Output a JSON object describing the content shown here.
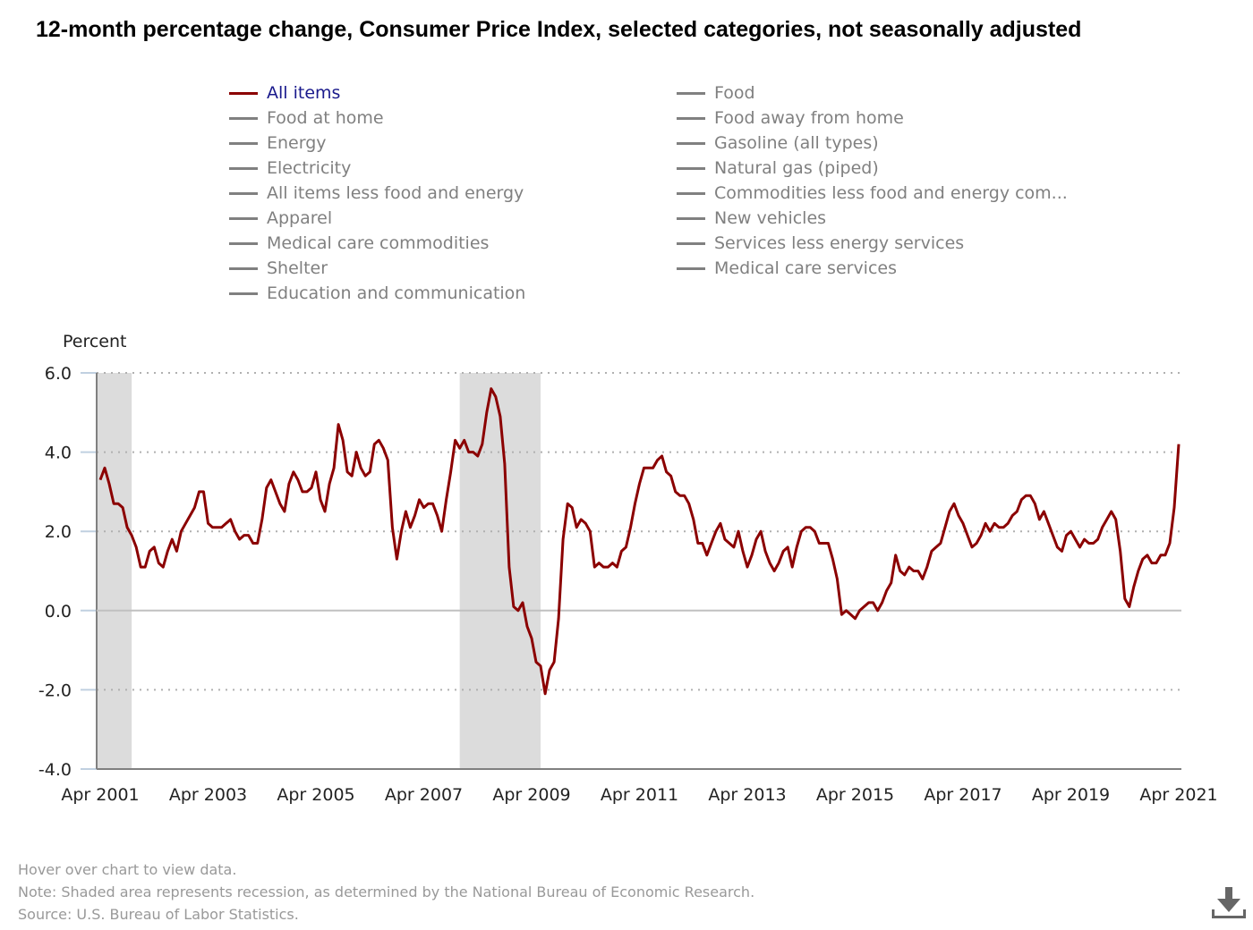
{
  "title": "12-month percentage change, Consumer Price Index, selected categories, not seasonally adjusted",
  "legend": {
    "left": [
      {
        "label": "All items",
        "active": true
      },
      {
        "label": "Food at home",
        "active": false
      },
      {
        "label": "Energy",
        "active": false
      },
      {
        "label": "Electricity",
        "active": false
      },
      {
        "label": "All items less food and energy",
        "active": false
      },
      {
        "label": "Apparel",
        "active": false
      },
      {
        "label": "Medical care commodities",
        "active": false
      },
      {
        "label": "Shelter",
        "active": false
      },
      {
        "label": "Education and communication",
        "active": false
      }
    ],
    "right": [
      {
        "label": "Food",
        "active": false
      },
      {
        "label": "Food away from home",
        "active": false
      },
      {
        "label": "Gasoline (all types)",
        "active": false
      },
      {
        "label": "Natural gas (piped)",
        "active": false
      },
      {
        "label": "Commodities less food and energy com...",
        "active": false
      },
      {
        "label": "New vehicles",
        "active": false
      },
      {
        "label": "Services less energy services",
        "active": false
      },
      {
        "label": "Medical care services",
        "active": false
      }
    ]
  },
  "colors": {
    "active_series": "#8b0000",
    "inactive_series": "#808080",
    "active_label": "#1a1a8c",
    "recession_fill": "#dcdcdc"
  },
  "chart_data": {
    "type": "line",
    "title": "12-month percentage change, Consumer Price Index, selected categories, not seasonally adjusted",
    "xlabel": "",
    "ylabel": "Percent",
    "ylim": [
      -4.0,
      6.0
    ],
    "yticks": [
      "6.0",
      "4.0",
      "2.0",
      "0.0",
      "-2.0",
      "-4.0"
    ],
    "ytick_values": [
      6,
      4,
      2,
      0,
      -2,
      -4
    ],
    "xticks": [
      "Apr 2001",
      "Apr 2003",
      "Apr 2005",
      "Apr 2007",
      "Apr 2009",
      "Apr 2011",
      "Apr 2013",
      "Apr 2015",
      "Apr 2017",
      "Apr 2019",
      "Apr 2021"
    ],
    "x_start": "Apr 2001",
    "x_end": "Apr 2021",
    "frequency": "monthly",
    "grid": true,
    "recessions": [
      {
        "start": "Mar 2001",
        "end": "Nov 2001"
      },
      {
        "start": "Dec 2007",
        "end": "Jun 2009"
      }
    ],
    "series": [
      {
        "name": "All items",
        "values": [
          3.3,
          3.6,
          3.2,
          2.7,
          2.7,
          2.6,
          2.1,
          1.9,
          1.6,
          1.1,
          1.1,
          1.5,
          1.6,
          1.2,
          1.1,
          1.5,
          1.8,
          1.5,
          2.0,
          2.2,
          2.4,
          2.6,
          3.0,
          3.0,
          2.2,
          2.1,
          2.1,
          2.1,
          2.2,
          2.3,
          2.0,
          1.8,
          1.9,
          1.9,
          1.7,
          1.7,
          2.3,
          3.1,
          3.3,
          3.0,
          2.7,
          2.5,
          3.2,
          3.5,
          3.3,
          3.0,
          3.0,
          3.1,
          3.5,
          2.8,
          2.5,
          3.2,
          3.6,
          4.7,
          4.3,
          3.5,
          3.4,
          4.0,
          3.6,
          3.4,
          3.5,
          4.2,
          4.3,
          4.1,
          3.8,
          2.1,
          1.3,
          2.0,
          2.5,
          2.1,
          2.4,
          2.8,
          2.6,
          2.7,
          2.7,
          2.4,
          2.0,
          2.8,
          3.5,
          4.3,
          4.1,
          4.3,
          4.0,
          4.0,
          3.9,
          4.2,
          5.0,
          5.6,
          5.4,
          4.9,
          3.7,
          1.1,
          0.1,
          0.0,
          0.2,
          -0.4,
          -0.7,
          -1.3,
          -1.4,
          -2.1,
          -1.5,
          -1.3,
          -0.2,
          1.8,
          2.7,
          2.6,
          2.1,
          2.3,
          2.2,
          2.0,
          1.1,
          1.2,
          1.1,
          1.1,
          1.2,
          1.1,
          1.5,
          1.6,
          2.1,
          2.7,
          3.2,
          3.6,
          3.6,
          3.6,
          3.8,
          3.9,
          3.5,
          3.4,
          3.0,
          2.9,
          2.9,
          2.7,
          2.3,
          1.7,
          1.7,
          1.4,
          1.7,
          2.0,
          2.2,
          1.8,
          1.7,
          1.6,
          2.0,
          1.5,
          1.1,
          1.4,
          1.8,
          2.0,
          1.5,
          1.2,
          1.0,
          1.2,
          1.5,
          1.6,
          1.1,
          1.6,
          2.0,
          2.1,
          2.1,
          2.0,
          1.7,
          1.7,
          1.7,
          1.3,
          0.8,
          -0.1,
          0.0,
          -0.1,
          -0.2,
          0.0,
          0.1,
          0.2,
          0.2,
          0.0,
          0.2,
          0.5,
          0.7,
          1.4,
          1.0,
          0.9,
          1.1,
          1.0,
          1.0,
          0.8,
          1.1,
          1.5,
          1.6,
          1.7,
          2.1,
          2.5,
          2.7,
          2.4,
          2.2,
          1.9,
          1.6,
          1.7,
          1.9,
          2.2,
          2.0,
          2.2,
          2.1,
          2.1,
          2.2,
          2.4,
          2.5,
          2.8,
          2.9,
          2.9,
          2.7,
          2.3,
          2.5,
          2.2,
          1.9,
          1.6,
          1.5,
          1.9,
          2.0,
          1.8,
          1.6,
          1.8,
          1.7,
          1.7,
          1.8,
          2.1,
          2.3,
          2.5,
          2.3,
          1.5,
          0.3,
          0.1,
          0.6,
          1.0,
          1.3,
          1.4,
          1.2,
          1.2,
          1.4,
          1.4,
          1.7,
          2.6,
          4.2
        ]
      }
    ]
  },
  "footer": {
    "hover_hint": "Hover over chart to view data.",
    "note": "Note: Shaded area represents recession, as determined by the National Bureau of Economic Research.",
    "source": "Source: U.S. Bureau of Labor Statistics."
  },
  "download_icon": "download-icon"
}
